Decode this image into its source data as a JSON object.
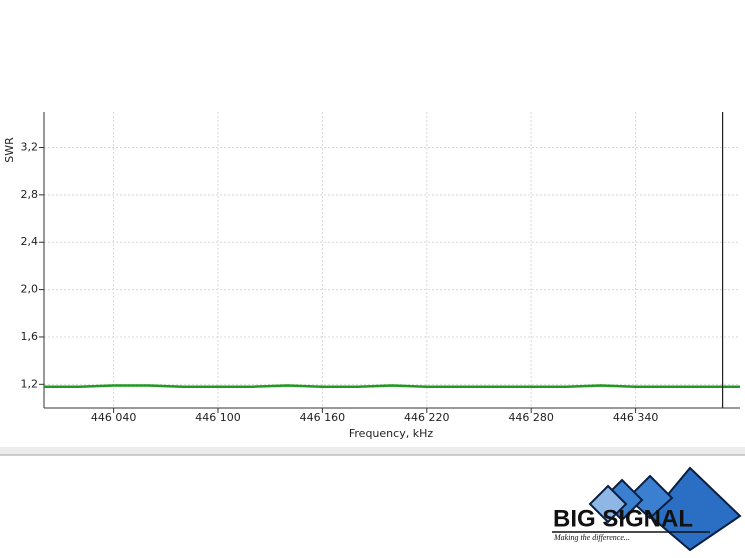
{
  "chart_data": {
    "type": "line",
    "y_label": "SWR",
    "x_label": "Frequency, kHz",
    "x": [
      446000,
      446020,
      446040,
      446060,
      446080,
      446100,
      446120,
      446140,
      446160,
      446180,
      446200,
      446220,
      446240,
      446260,
      446280,
      446300,
      446320,
      446340,
      446360,
      446380,
      446400
    ],
    "series": [
      {
        "name": "SWR",
        "color": "#1f9a1f",
        "values": [
          1.18,
          1.18,
          1.19,
          1.19,
          1.18,
          1.18,
          1.18,
          1.19,
          1.18,
          1.18,
          1.19,
          1.18,
          1.18,
          1.18,
          1.18,
          1.18,
          1.19,
          1.18,
          1.18,
          1.18,
          1.18
        ]
      }
    ],
    "xlim": [
      446000,
      446400
    ],
    "xticks": [
      {
        "value": 446040,
        "label": "446 040"
      },
      {
        "value": 446100,
        "label": "446 100"
      },
      {
        "value": 446160,
        "label": "446 160"
      },
      {
        "value": 446220,
        "label": "446 220"
      },
      {
        "value": 446280,
        "label": "446 280"
      },
      {
        "value": 446340,
        "label": "446 340"
      }
    ],
    "ylim": [
      1.0,
      3.5
    ],
    "yticks": [
      {
        "value": 1.2,
        "label": "1,2"
      },
      {
        "value": 1.6,
        "label": "1,6"
      },
      {
        "value": 2.0,
        "label": "2,0"
      },
      {
        "value": 2.4,
        "label": "2,4"
      },
      {
        "value": 2.8,
        "label": "2,8"
      },
      {
        "value": 3.2,
        "label": "3,2"
      }
    ],
    "grid": true,
    "cursor_x": 446390
  },
  "logo": {
    "name": "BIG SIGNAL",
    "tagline": "Making the difference..."
  }
}
